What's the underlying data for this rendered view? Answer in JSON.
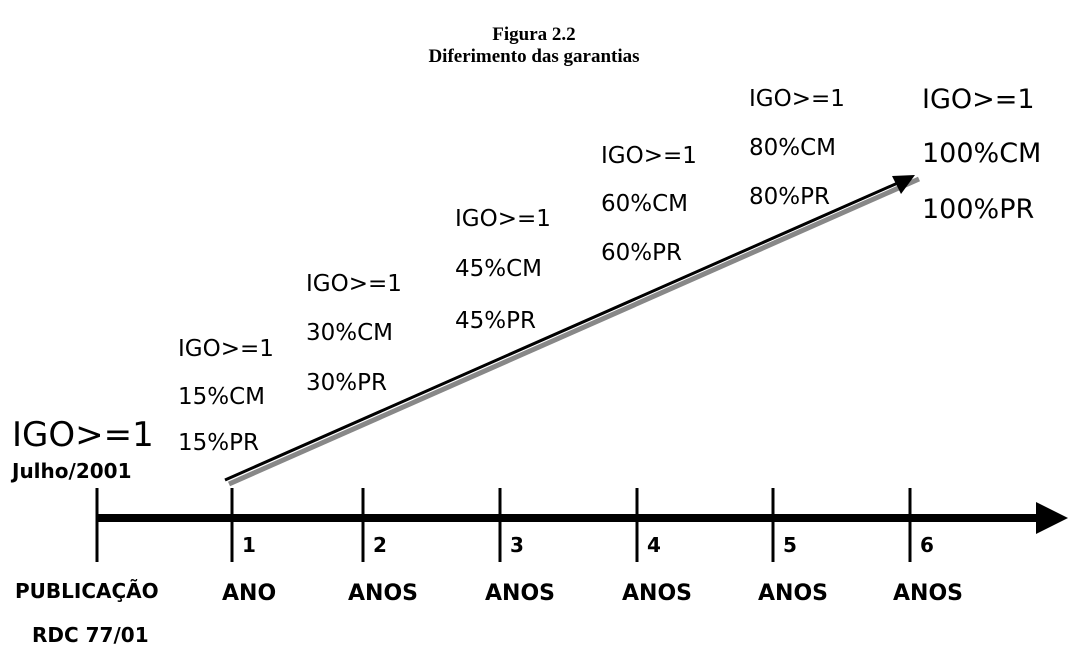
{
  "header": {
    "title": "Figura 2.2",
    "subtitle": "Diferimento das garantias"
  },
  "start": {
    "label": "IGO>=1",
    "date": "Julho/2001",
    "lines": [
      "PUBLICAÇÃO",
      "RDC 77/01"
    ]
  },
  "steps": [
    {
      "lines": [
        "IGO>=1",
        "15%CM",
        "15%PR"
      ],
      "number": "1",
      "unit": "ANO"
    },
    {
      "lines": [
        "IGO>=1",
        "30%CM",
        "30%PR"
      ],
      "number": "2",
      "unit": "ANOS"
    },
    {
      "lines": [
        "IGO>=1",
        "45%CM",
        "45%PR"
      ],
      "number": "3",
      "unit": "ANOS"
    },
    {
      "lines": [
        "IGO>=1",
        "60%CM",
        "60%PR"
      ],
      "number": "4",
      "unit": "ANOS"
    },
    {
      "lines": [
        "IGO>=1",
        "80%CM",
        "80%PR"
      ],
      "number": "5",
      "unit": "ANOS"
    },
    {
      "lines": [
        "IGO>=1",
        "100%CM",
        "100%PR"
      ],
      "number": "6",
      "unit": "ANOS"
    }
  ]
}
